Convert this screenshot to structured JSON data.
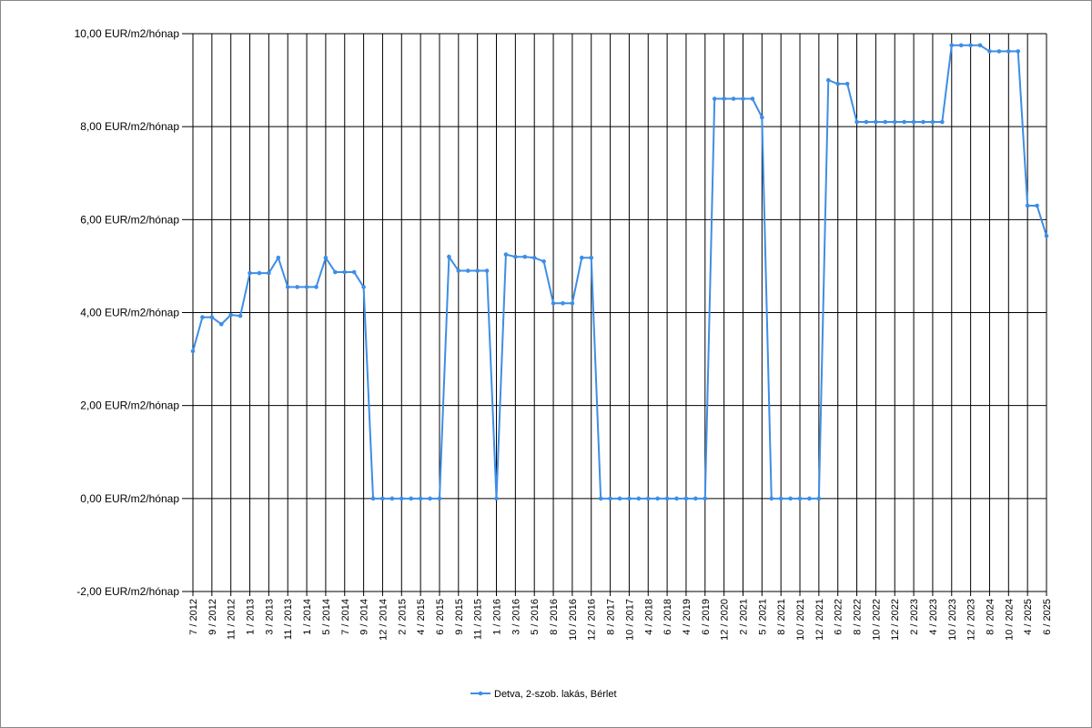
{
  "chart_data": {
    "type": "line",
    "categories": [
      "7 / 2012",
      null,
      "9 / 2012",
      null,
      "11 / 2012",
      null,
      "1 / 2013",
      null,
      "3 / 2013",
      null,
      "11 / 2013",
      null,
      "1 / 2014",
      null,
      "5 / 2014",
      null,
      "7 / 2014",
      null,
      "9 / 2014",
      null,
      "12 / 2014",
      null,
      "2 / 2015",
      null,
      "4 / 2015",
      null,
      "6 / 2015",
      null,
      "9 / 2015",
      null,
      "11 / 2015",
      null,
      "1 / 2016",
      null,
      "3 / 2016",
      null,
      "5 / 2016",
      null,
      "8 / 2016",
      null,
      "10 / 2016",
      null,
      "12 / 2016",
      null,
      "8 / 2017",
      null,
      "10 / 2017",
      null,
      "4 / 2018",
      null,
      "6 / 2018",
      null,
      "4 / 2019",
      null,
      "6 / 2019",
      null,
      "12 / 2020",
      null,
      "2 / 2021",
      null,
      "5 / 2021",
      null,
      "8 / 2021",
      null,
      "10 / 2021",
      null,
      "12 / 2021",
      null,
      "6 / 2022",
      null,
      "8 / 2022",
      null,
      "10 / 2022",
      null,
      "12 / 2022",
      null,
      "2 / 2023",
      null,
      "4 / 2023",
      null,
      "10 / 2023",
      null,
      "12 / 2023",
      null,
      "8 / 2024",
      null,
      "10 / 2024",
      null,
      "4 / 2025",
      null,
      "6 / 2025"
    ],
    "series": [
      {
        "name": "Detva, 2-szob. lakás, Bérlet",
        "color": "#3d8ee6",
        "values": [
          3.17,
          3.9,
          3.9,
          3.75,
          3.95,
          3.93,
          4.85,
          4.85,
          4.85,
          5.18,
          4.55,
          4.55,
          4.55,
          4.55,
          5.18,
          4.87,
          4.87,
          4.87,
          4.55,
          0,
          0,
          0,
          0,
          0,
          0,
          0,
          0,
          5.2,
          4.9,
          4.9,
          4.9,
          4.9,
          0,
          5.25,
          5.2,
          5.2,
          5.18,
          5.1,
          4.2,
          4.2,
          4.2,
          5.18,
          5.18,
          0,
          0,
          0,
          0,
          0,
          0,
          0,
          0,
          0,
          0,
          0,
          0,
          8.6,
          8.6,
          8.6,
          8.6,
          8.6,
          8.2,
          0,
          0,
          0,
          0,
          0,
          0,
          9.0,
          8.92,
          8.92,
          8.1,
          8.1,
          8.1,
          8.1,
          8.1,
          8.1,
          8.1,
          8.1,
          8.1,
          8.1,
          9.75,
          9.75,
          9.75,
          9.75,
          9.62,
          9.62,
          9.62,
          9.62,
          6.3,
          6.3,
          5.65
        ]
      }
    ],
    "ylim": [
      -2,
      10
    ],
    "yticks": [
      {
        "value": -2,
        "label": "-2,00 EUR/m2/hónap"
      },
      {
        "value": 0,
        "label": "0,00 EUR/m2/hónap"
      },
      {
        "value": 2,
        "label": "2,00 EUR/m2/hónap"
      },
      {
        "value": 4,
        "label": "4,00 EUR/m2/hónap"
      },
      {
        "value": 6,
        "label": "6,00 EUR/m2/hónap"
      },
      {
        "value": 8,
        "label": "8,00 EUR/m2/hónap"
      },
      {
        "value": 10,
        "label": "10,00 EUR/m2/hónap"
      }
    ],
    "grid": true,
    "legend": "bottom"
  }
}
